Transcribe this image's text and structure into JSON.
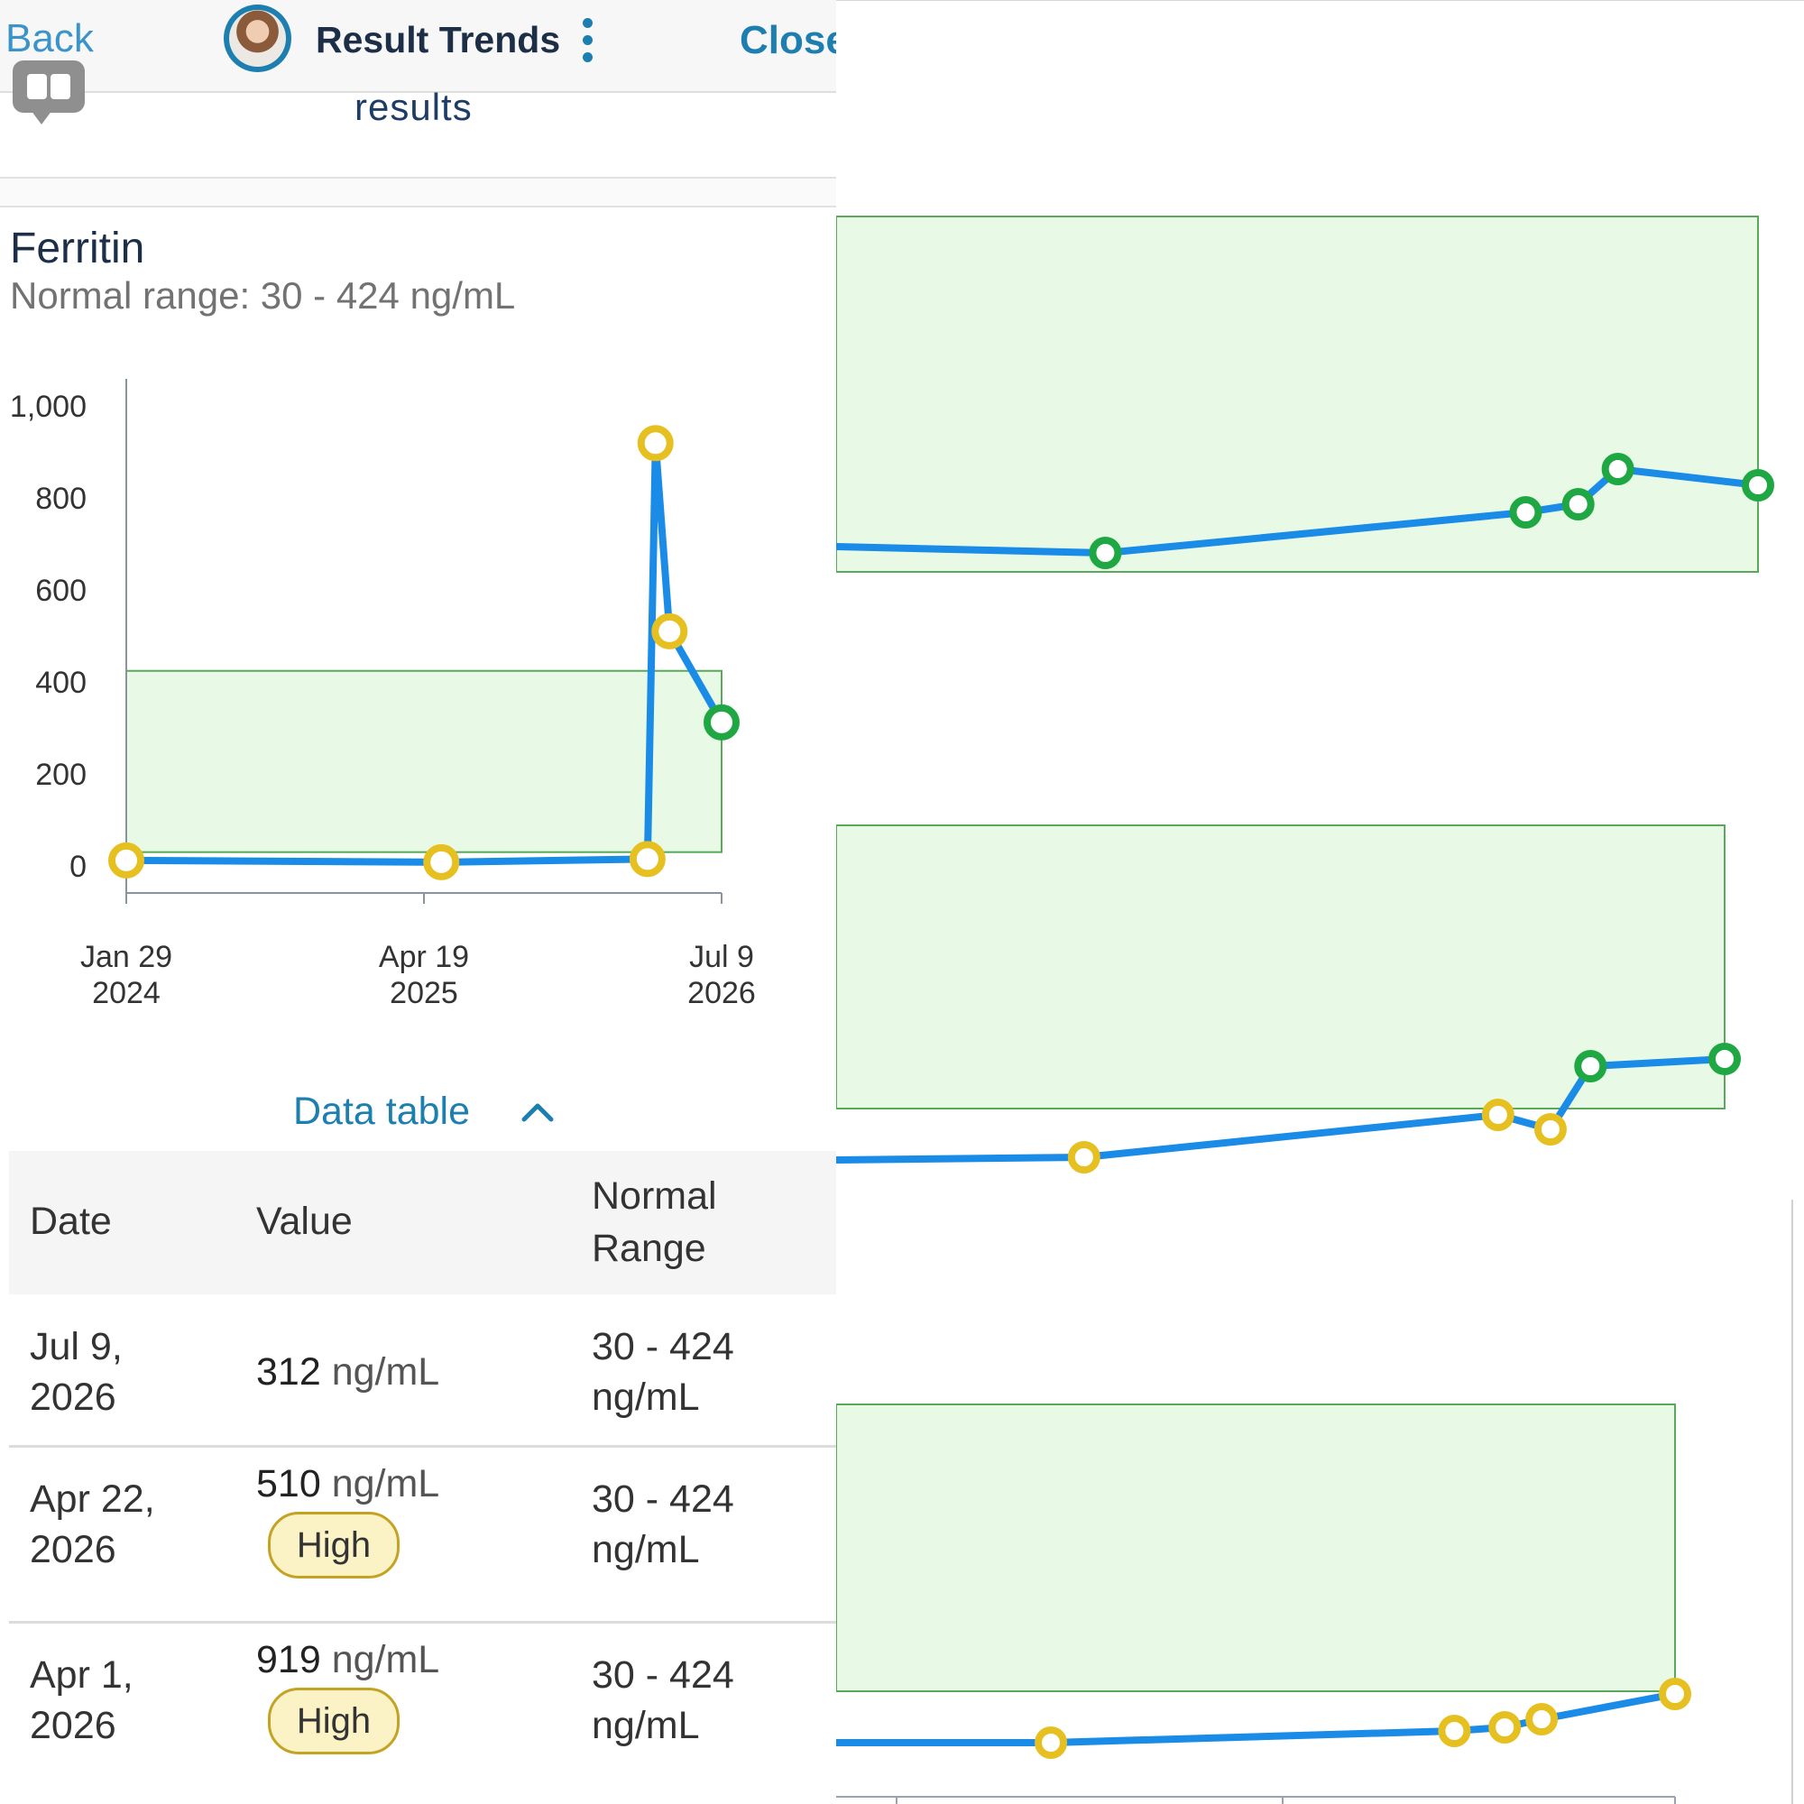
{
  "top_bar": {
    "back_label": "Back",
    "title": "Result Trends",
    "close_label": "Close"
  },
  "subheader": {
    "text": "results"
  },
  "test": {
    "name": "Ferritin",
    "normal_range_label": "Normal range: 30 - 424 ng/mL"
  },
  "chart_data": {
    "type": "line",
    "title": "Ferritin",
    "ylim": [
      0,
      1000
    ],
    "y_ticks": [
      "1,000",
      "800",
      "600",
      "400",
      "200",
      "0"
    ],
    "x_ticks": [
      {
        "line1": "Jan 29",
        "line2": "2024"
      },
      {
        "line1": "Apr 19",
        "line2": "2025"
      },
      {
        "line1": "Jul 9",
        "line2": "2026"
      }
    ],
    "normal_range": [
      30,
      424
    ],
    "series": [
      {
        "points": [
          {
            "date": "2024-01-29",
            "value": 12,
            "status": "abnormal"
          },
          {
            "date": "2025-05-15",
            "value": 8,
            "status": "abnormal"
          },
          {
            "date": "2026-03-20",
            "value": 15,
            "status": "abnormal"
          },
          {
            "date": "2026-04-01",
            "value": 919,
            "status": "abnormal"
          },
          {
            "date": "2026-04-22",
            "value": 510,
            "status": "abnormal"
          },
          {
            "date": "2026-07-09",
            "value": 312,
            "status": "normal"
          }
        ]
      }
    ],
    "colors": {
      "line": "#1a8be6",
      "abnormal_marker": "#e6c020",
      "normal_marker": "#1fa743",
      "range_fill": "#e8fae5",
      "range_stroke": "#5aa85c"
    }
  },
  "data_table": {
    "toggle_label": "Data table",
    "headers": {
      "date": "Date",
      "value": "Value",
      "range_line1": "Normal",
      "range_line2": "Range"
    },
    "rows": [
      {
        "date_line1": "Jul 9,",
        "date_line2": "2026",
        "value": "312",
        "unit": "ng/mL",
        "flag": "",
        "range_line1": "30 - 424",
        "range_line2": "ng/mL"
      },
      {
        "date_line1": "Apr 22,",
        "date_line2": "2026",
        "value": "510",
        "unit": "ng/mL",
        "flag": "High",
        "range_line1": "30 - 424",
        "range_line2": "ng/mL"
      },
      {
        "date_line1": "Apr 1,",
        "date_line2": "2026",
        "value": "919",
        "unit": "ng/mL",
        "flag": "High",
        "range_line1": "30 - 424",
        "range_line2": "ng/mL"
      }
    ]
  },
  "right_panels": [
    {
      "points": [
        {
          "x": 0,
          "y": 0,
          "status": "line-start"
        },
        {
          "x": 0.292,
          "y": 0,
          "status": "normal"
        },
        {
          "x": 0.748,
          "y": 0,
          "status": "normal"
        },
        {
          "x": 0.805,
          "y": 0,
          "status": "normal"
        },
        {
          "x": 0.848,
          "y": 0,
          "status": "normal"
        },
        {
          "x": 1.0,
          "y": 0,
          "status": "normal"
        }
      ]
    },
    {
      "points": [
        {
          "x": 0,
          "y": 0,
          "status": "line-start"
        },
        {
          "x": 0.279,
          "y": 0,
          "status": "abnormal"
        },
        {
          "x": 0.745,
          "y": 0,
          "status": "abnormal"
        },
        {
          "x": 0.804,
          "y": 0,
          "status": "abnormal"
        },
        {
          "x": 0.849,
          "y": 0,
          "status": "normal"
        },
        {
          "x": 1.0,
          "y": 0,
          "status": "normal"
        }
      ]
    },
    {
      "points": [
        {
          "x": 0,
          "y": 0,
          "status": "line-start"
        },
        {
          "x": 0.256,
          "y": 0,
          "status": "abnormal"
        },
        {
          "x": 0.737,
          "y": 0,
          "status": "abnormal"
        },
        {
          "x": 0.797,
          "y": 0,
          "status": "abnormal"
        },
        {
          "x": 0.841,
          "y": 0,
          "status": "abnormal"
        },
        {
          "x": 1.0,
          "y": 0,
          "status": "abnormal"
        }
      ]
    }
  ]
}
